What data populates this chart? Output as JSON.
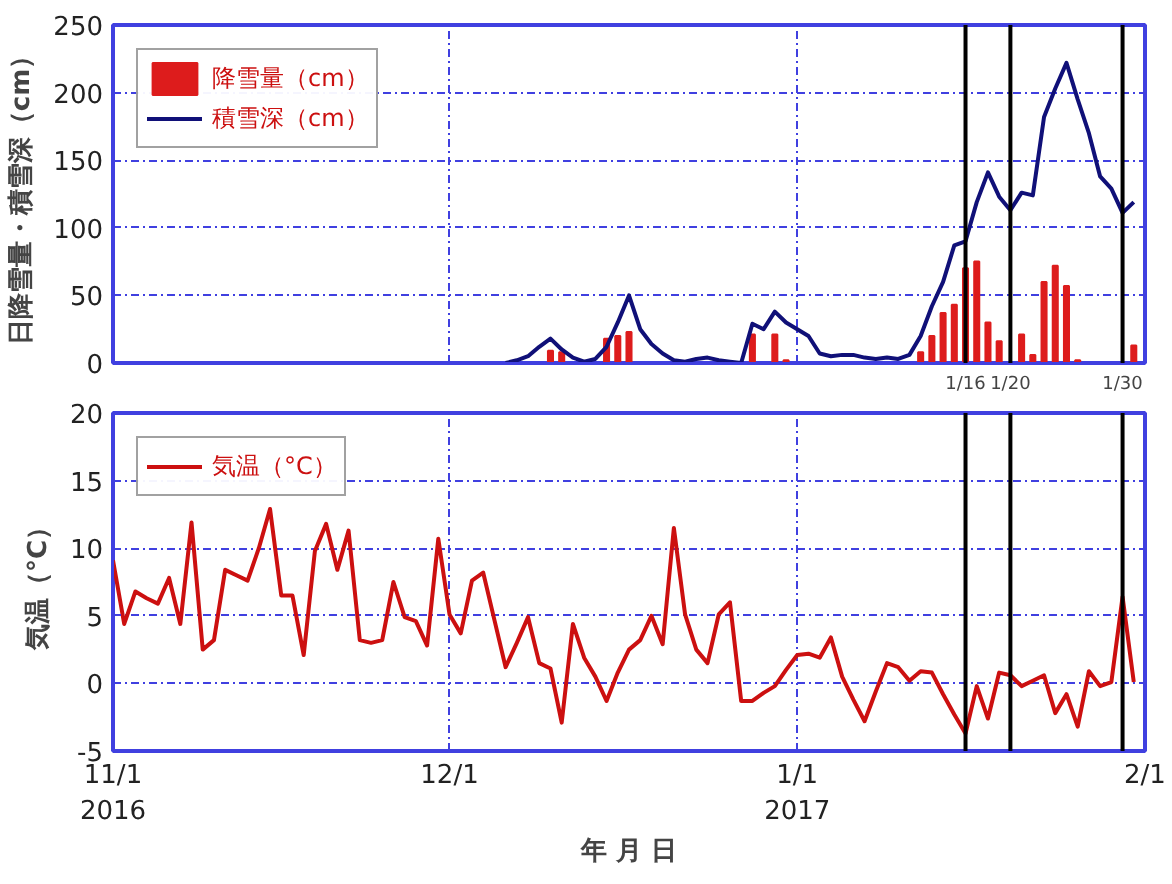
{
  "chart_data": [
    {
      "type": "bar",
      "ylabel": "日降雪量・積雪深（cm）",
      "xlim": [
        "2016-11-01",
        "2017-02-01"
      ],
      "ylim": [
        0,
        250
      ],
      "xticks": [
        {
          "value": "2016-11-01",
          "label": null
        },
        {
          "value": "2016-12-01",
          "label": null
        },
        {
          "value": "2017-01-01",
          "label": null
        },
        {
          "value": "2017-02-01",
          "label": null
        }
      ],
      "yticks": [
        0,
        50,
        100,
        150,
        200,
        250
      ],
      "tick_labels": "y",
      "grid": true,
      "legend": "top left",
      "series": [
        {
          "name": "降雪量（cm）",
          "type": "bar",
          "color": "#dd1c1c",
          "x": [
            "2016-12-10",
            "2016-12-11",
            "2016-12-15",
            "2016-12-16",
            "2016-12-17",
            "2016-12-28",
            "2016-12-30",
            "2016-12-31",
            "2017-01-12",
            "2017-01-13",
            "2017-01-14",
            "2017-01-15",
            "2017-01-16",
            "2017-01-17",
            "2017-01-18",
            "2017-01-19",
            "2017-01-21",
            "2017-01-22",
            "2017-01-23",
            "2017-01-24",
            "2017-01-25",
            "2017-01-26",
            "2017-01-31"
          ],
          "values": [
            9,
            8,
            18,
            20,
            23,
            21,
            21,
            2,
            8,
            20,
            37,
            43,
            70,
            75,
            30,
            16,
            21,
            6,
            60,
            72,
            57,
            2,
            13
          ]
        },
        {
          "name": "積雪深（cm）",
          "type": "line",
          "color": "#101078",
          "x": [
            "2016-12-06",
            "2016-12-07",
            "2016-12-08",
            "2016-12-09",
            "2016-12-10",
            "2016-12-11",
            "2016-12-12",
            "2016-12-13",
            "2016-12-14",
            "2016-12-15",
            "2016-12-16",
            "2016-12-17",
            "2016-12-18",
            "2016-12-19",
            "2016-12-20",
            "2016-12-21",
            "2016-12-22",
            "2016-12-23",
            "2016-12-24",
            "2016-12-25",
            "2016-12-26",
            "2016-12-27",
            "2016-12-28",
            "2016-12-29",
            "2016-12-30",
            "2016-12-31",
            "2017-01-01",
            "2017-01-02",
            "2017-01-03",
            "2017-01-04",
            "2017-01-05",
            "2017-01-06",
            "2017-01-07",
            "2017-01-08",
            "2017-01-09",
            "2017-01-10",
            "2017-01-11",
            "2017-01-12",
            "2017-01-13",
            "2017-01-14",
            "2017-01-15",
            "2017-01-16",
            "2017-01-17",
            "2017-01-18",
            "2017-01-19",
            "2017-01-20",
            "2017-01-21",
            "2017-01-22",
            "2017-01-23",
            "2017-01-24",
            "2017-01-25",
            "2017-01-26",
            "2017-01-27",
            "2017-01-28",
            "2017-01-29",
            "2017-01-30",
            "2017-01-31"
          ],
          "values": [
            0,
            2,
            5,
            12,
            18,
            10,
            4,
            1,
            3,
            12,
            30,
            50,
            25,
            14,
            7,
            2,
            1,
            3,
            4,
            2,
            1,
            0,
            29,
            25,
            38,
            30,
            25,
            20,
            7,
            5,
            6,
            6,
            4,
            3,
            4,
            3,
            6,
            20,
            42,
            60,
            87,
            90,
            119,
            141,
            123,
            113,
            126,
            124,
            182,
            203,
            222,
            195,
            170,
            138,
            129,
            111,
            119
          ]
        }
      ],
      "ref_lines": [
        {
          "axis": "x",
          "value": "2017-01-16",
          "label": "1/16",
          "color": "#000000"
        },
        {
          "axis": "x",
          "value": "2017-01-20",
          "label": "1/20",
          "color": "#000000"
        },
        {
          "axis": "x",
          "value": "2017-01-30",
          "label": "1/30",
          "color": "#000000"
        }
      ]
    },
    {
      "type": "line",
      "ylabel": "気温（°C）",
      "xlabel": "年 月 日",
      "xlim": [
        "2016-11-01",
        "2017-02-01"
      ],
      "ylim": [
        -5,
        20
      ],
      "xticks": [
        {
          "value": "2016-11-01",
          "label": "11/1\n2016"
        },
        {
          "value": "2016-12-01",
          "label": "12/1"
        },
        {
          "value": "2017-01-01",
          "label": "1/1\n2017"
        },
        {
          "value": "2017-02-01",
          "label": "2/1"
        }
      ],
      "yticks": [
        -5,
        0,
        5,
        10,
        15,
        20
      ],
      "grid": true,
      "legend": "top left",
      "series": [
        {
          "name": "気温（°C）",
          "color": "#cc1010",
          "x": [
            "2016-11-01",
            "2016-11-02",
            "2016-11-03",
            "2016-11-04",
            "2016-11-05",
            "2016-11-06",
            "2016-11-07",
            "2016-11-08",
            "2016-11-09",
            "2016-11-10",
            "2016-11-11",
            "2016-11-12",
            "2016-11-13",
            "2016-11-14",
            "2016-11-15",
            "2016-11-16",
            "2016-11-17",
            "2016-11-18",
            "2016-11-19",
            "2016-11-20",
            "2016-11-21",
            "2016-11-22",
            "2016-11-23",
            "2016-11-24",
            "2016-11-25",
            "2016-11-26",
            "2016-11-27",
            "2016-11-28",
            "2016-11-29",
            "2016-11-30",
            "2016-12-01",
            "2016-12-02",
            "2016-12-03",
            "2016-12-04",
            "2016-12-05",
            "2016-12-06",
            "2016-12-07",
            "2016-12-08",
            "2016-12-09",
            "2016-12-10",
            "2016-12-11",
            "2016-12-12",
            "2016-12-13",
            "2016-12-14",
            "2016-12-15",
            "2016-12-16",
            "2016-12-17",
            "2016-12-18",
            "2016-12-19",
            "2016-12-20",
            "2016-12-21",
            "2016-12-22",
            "2016-12-23",
            "2016-12-24",
            "2016-12-25",
            "2016-12-26",
            "2016-12-27",
            "2016-12-28",
            "2016-12-29",
            "2016-12-30",
            "2016-12-31",
            "2017-01-01",
            "2017-01-02",
            "2017-01-03",
            "2017-01-04",
            "2017-01-05",
            "2017-01-06",
            "2017-01-07",
            "2017-01-08",
            "2017-01-09",
            "2017-01-10",
            "2017-01-11",
            "2017-01-12",
            "2017-01-13",
            "2017-01-14",
            "2017-01-15",
            "2017-01-16",
            "2017-01-17",
            "2017-01-18",
            "2017-01-19",
            "2017-01-20",
            "2017-01-21",
            "2017-01-22",
            "2017-01-23",
            "2017-01-24",
            "2017-01-25",
            "2017-01-26",
            "2017-01-27",
            "2017-01-28",
            "2017-01-29",
            "2017-01-30",
            "2017-01-31"
          ],
          "values": [
            9.1,
            4.4,
            6.8,
            6.3,
            5.9,
            7.8,
            4.4,
            11.9,
            2.5,
            3.2,
            8.4,
            8.0,
            7.6,
            10.0,
            12.9,
            6.5,
            6.5,
            2.1,
            9.8,
            11.8,
            8.4,
            11.3,
            3.2,
            3.0,
            3.2,
            7.5,
            4.9,
            4.6,
            2.8,
            10.7,
            5.1,
            3.7,
            7.6,
            8.2,
            4.7,
            1.2,
            3.0,
            4.9,
            1.5,
            1.1,
            -2.9,
            4.4,
            1.9,
            0.5,
            -1.3,
            0.8,
            2.5,
            3.2,
            5.0,
            2.9,
            11.5,
            5.1,
            2.5,
            1.5,
            5.1,
            6.0,
            -1.3,
            -1.3,
            -0.7,
            -0.2,
            1.0,
            2.1,
            2.2,
            1.9,
            3.4,
            0.5,
            -1.2,
            -2.8,
            -0.6,
            1.5,
            1.2,
            0.2,
            0.9,
            0.8,
            -0.8,
            -2.3,
            -3.7,
            -0.2,
            -2.6,
            0.8,
            0.6,
            -0.2,
            0.2,
            0.6,
            -2.2,
            -0.8,
            -3.2,
            0.9,
            -0.2,
            0.1,
            6.4,
            0.1
          ]
        }
      ],
      "ref_lines": [
        {
          "axis": "x",
          "value": "2017-01-16",
          "color": "#000000"
        },
        {
          "axis": "x",
          "value": "2017-01-20",
          "color": "#000000"
        },
        {
          "axis": "x",
          "value": "2017-01-30",
          "color": "#000000"
        }
      ]
    }
  ]
}
